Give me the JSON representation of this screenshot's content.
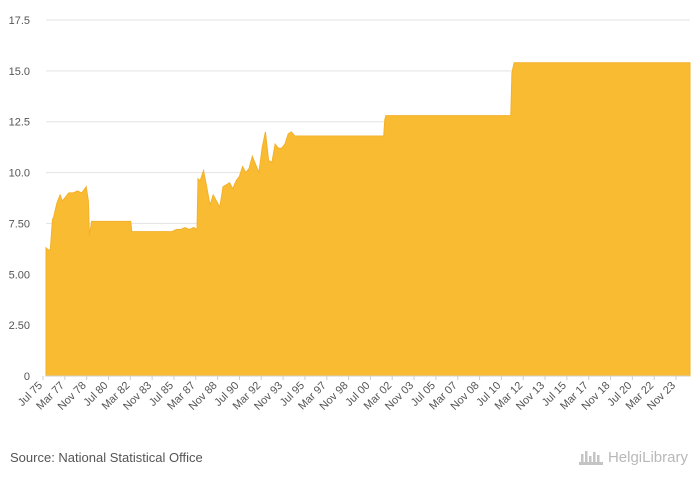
{
  "footer": {
    "source": "Source: National Statistical Office",
    "brand": "HelgiLibrary"
  },
  "colors": {
    "area": "#F9BB32",
    "area_edge": "#F3B12A",
    "grid": "#e3e3e3"
  },
  "chart_data": {
    "type": "area",
    "title": "",
    "xlabel": "",
    "ylabel": "",
    "ylim": [
      0,
      17.5
    ],
    "yticks": [
      0,
      2.5,
      5.0,
      7.5,
      10.0,
      12.5,
      15.0,
      17.5
    ],
    "ytick_labels": [
      "0",
      "2.50",
      "5.00",
      "7.50",
      "10.0",
      "12.5",
      "15.0",
      "17.5"
    ],
    "xlim": [
      "1975-07",
      "2024-12"
    ],
    "xtick_labels": [
      "Jul 75",
      "Mar 77",
      "Nov 78",
      "Jul 80",
      "Mar 82",
      "Nov 83",
      "Jul 85",
      "Mar 87",
      "Nov 88",
      "Jul 90",
      "Mar 92",
      "Nov 93",
      "Jul 95",
      "Mar 97",
      "Nov 98",
      "Jul 00",
      "Mar 02",
      "Nov 03",
      "Jul 05",
      "Mar 07",
      "Nov 08",
      "Jul 10",
      "Mar 12",
      "Nov 13",
      "Jul 15",
      "Mar 17",
      "Nov 18",
      "Jul 20",
      "Mar 22",
      "Nov 23"
    ],
    "grid": true,
    "series": [
      {
        "x": [
          "1975-07",
          "1975-09",
          "1975-11",
          "1976-01",
          "1976-02",
          "1976-05",
          "1976-08",
          "1976-10",
          "1977-01",
          "1977-04",
          "1977-08",
          "1977-12",
          "1978-04",
          "1978-08",
          "1978-10",
          "1978-11",
          "1979-01",
          "1979-03",
          "1980-01",
          "1981-02",
          "1982-01",
          "1982-02",
          "1983-01",
          "1984-01",
          "1985-01",
          "1985-03",
          "1985-07",
          "1985-11",
          "1986-03",
          "1986-07",
          "1986-11",
          "1987-02",
          "1987-03",
          "1987-05",
          "1987-08",
          "1987-11",
          "1988-02",
          "1988-05",
          "1988-08",
          "1988-11",
          "1989-02",
          "1989-05",
          "1989-08",
          "1989-11",
          "1990-02",
          "1990-05",
          "1990-08",
          "1990-11",
          "1991-02",
          "1991-05",
          "1991-08",
          "1991-11",
          "1992-02",
          "1992-05",
          "1992-08",
          "1992-11",
          "1993-02",
          "1993-05",
          "1993-08",
          "1993-11",
          "1994-02",
          "1994-05",
          "1994-08",
          "1994-11",
          "1995-02",
          "1995-05",
          "1996-01",
          "1998-01",
          "2000-01",
          "2001-06",
          "2001-07",
          "2001-08",
          "2003-01",
          "2006-01",
          "2009-01",
          "2011-01",
          "2011-03",
          "2011-04",
          "2011-06",
          "2011-08",
          "2012-01",
          "2013-06",
          "2015-06",
          "2017-06",
          "2019-06",
          "2021-06",
          "2023-06",
          "2024-12"
        ],
        "values": [
          6.3,
          6.2,
          6.2,
          7.7,
          7.8,
          8.5,
          8.9,
          8.6,
          8.8,
          9.0,
          9.0,
          9.1,
          9.0,
          9.3,
          8.6,
          6.9,
          7.6,
          7.6,
          7.6,
          7.6,
          7.6,
          7.1,
          7.1,
          7.1,
          7.1,
          7.1,
          7.2,
          7.2,
          7.3,
          7.2,
          7.3,
          7.2,
          9.7,
          9.6,
          10.1,
          9.3,
          8.4,
          8.9,
          8.6,
          8.3,
          9.3,
          9.4,
          9.5,
          9.2,
          9.6,
          9.8,
          10.3,
          10.0,
          10.2,
          10.8,
          10.4,
          10.0,
          11.2,
          12.0,
          10.6,
          10.5,
          11.4,
          11.2,
          11.2,
          11.4,
          11.9,
          12.0,
          11.8,
          11.8,
          11.8,
          11.8,
          11.8,
          11.8,
          11.8,
          11.8,
          12.6,
          12.8,
          12.8,
          12.8,
          12.8,
          12.8,
          12.8,
          14.9,
          15.4,
          15.4,
          15.4,
          15.4,
          15.4,
          15.4,
          15.4,
          15.4,
          15.4,
          15.4
        ]
      }
    ]
  }
}
